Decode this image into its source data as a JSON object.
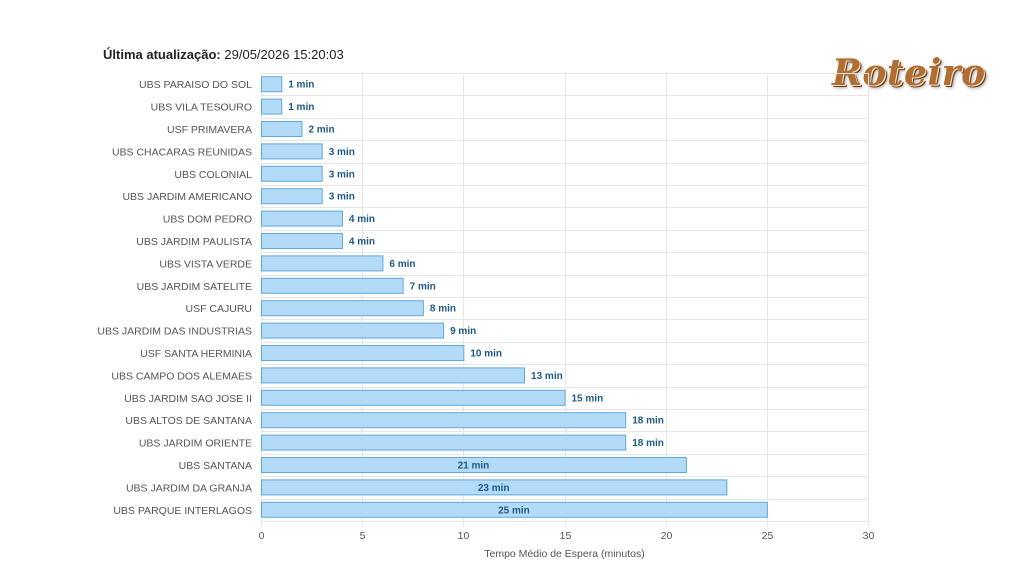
{
  "header": {
    "update_label": "Última atualização:",
    "update_value": "29/05/2026 15:20:03",
    "logo_text": "Roteiro"
  },
  "chart_data": {
    "type": "bar",
    "orientation": "horizontal",
    "categories": [
      "UBS PARAISO DO SOL",
      "UBS VILA TESOURO",
      "USF PRIMAVERA",
      "UBS CHACARAS REUNIDAS",
      "UBS COLONIAL",
      "UBS JARDIM AMERICANO",
      "UBS DOM PEDRO",
      "UBS JARDIM PAULISTA",
      "UBS VISTA VERDE",
      "UBS JARDIM SATELITE",
      "USF CAJURU",
      "UBS JARDIM DAS INDUSTRIAS",
      "USF SANTA HERMINIA",
      "UBS CAMPO DOS ALEMAES",
      "UBS JARDIM SAO JOSE II",
      "UBS ALTOS DE SANTANA",
      "UBS JARDIM ORIENTE",
      "UBS SANTANA",
      "UBS JARDIM DA GRANJA",
      "UBS PARQUE INTERLAGOS"
    ],
    "values": [
      1,
      1,
      2,
      3,
      3,
      3,
      4,
      4,
      6,
      7,
      8,
      9,
      10,
      13,
      15,
      18,
      18,
      21,
      23,
      25
    ],
    "labels": [
      "1 min",
      "1 min",
      "2 min",
      "3 min",
      "3 min",
      "3 min",
      "4 min",
      "4 min",
      "6 min",
      "7 min",
      "8 min",
      "9 min",
      "10 min",
      "13 min",
      "15 min",
      "18 min",
      "18 min",
      "21 min",
      "23 min",
      "25 min"
    ],
    "xlabel": "Tempo Médio de Espera (minutos)",
    "xlim": [
      0,
      30
    ],
    "xticks": [
      0,
      5,
      10,
      15,
      20,
      25,
      30
    ],
    "grid": true,
    "colors": {
      "bar_fill": "#b3dbf7",
      "bar_stroke": "#5fa8de",
      "label": "#1c5a85"
    }
  }
}
